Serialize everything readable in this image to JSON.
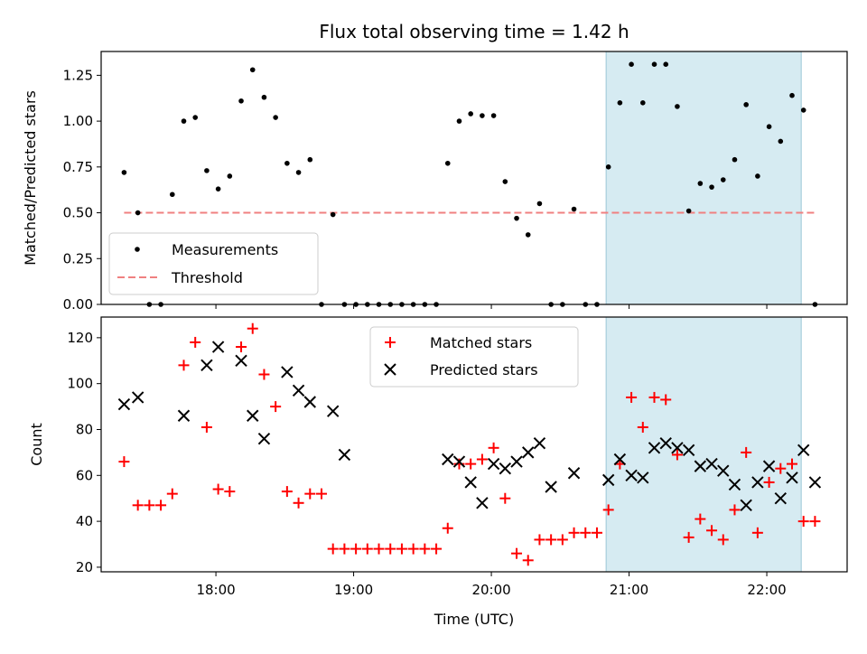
{
  "chart_data": [
    {
      "type": "scatter",
      "title": "Flux total observing time = 1.42 h",
      "xlabel": "",
      "ylabel": "Matched/Predicted stars",
      "xlim": [
        "17:10",
        "22:35"
      ],
      "ylim": [
        0,
        1.38
      ],
      "yticks": [
        0.0,
        0.25,
        0.5,
        0.75,
        1.0,
        1.25
      ],
      "ytick_labels": [
        "0.00",
        "0.25",
        "0.50",
        "0.75",
        "1.00",
        "1.25"
      ],
      "grid": false,
      "legend_position": "lower-left",
      "highlight_span": [
        "20:50",
        "22:15"
      ],
      "highlight_color": "#add8e6",
      "series": [
        {
          "name": "Measurements",
          "color": "#000000",
          "x": [
            "17:20",
            "17:26",
            "17:31",
            "17:36",
            "17:41",
            "17:46",
            "17:51",
            "17:56",
            "18:01",
            "18:06",
            "18:11",
            "18:16",
            "18:21",
            "18:26",
            "18:31",
            "18:36",
            "18:41",
            "18:46",
            "18:51",
            "18:56",
            "19:01",
            "19:06",
            "19:11",
            "19:16",
            "19:21",
            "19:26",
            "19:31",
            "19:36",
            "19:41",
            "19:46",
            "19:51",
            "19:56",
            "20:01",
            "20:06",
            "20:11",
            "20:16",
            "20:21",
            "20:26",
            "20:31",
            "20:36",
            "20:41",
            "20:46",
            "20:51",
            "20:56",
            "21:01",
            "21:06",
            "21:11",
            "21:16",
            "21:21",
            "21:26",
            "21:31",
            "21:36",
            "21:41",
            "21:46",
            "21:51",
            "21:56",
            "22:01",
            "22:06",
            "22:11",
            "22:16",
            "22:21"
          ],
          "y": [
            0.72,
            0.5,
            0.0,
            0.0,
            0.6,
            1.0,
            1.02,
            0.73,
            0.63,
            0.7,
            1.11,
            1.28,
            1.13,
            1.02,
            0.77,
            0.72,
            0.79,
            0.0,
            0.49,
            0.0,
            0.0,
            0.0,
            0.0,
            0.0,
            0.0,
            0.0,
            0.0,
            0.0,
            0.77,
            1.0,
            1.04,
            1.03,
            1.03,
            0.67,
            0.47,
            0.38,
            0.55,
            0.0,
            0.0,
            0.52,
            0.0,
            0.0,
            0.75,
            1.1,
            1.31,
            1.1,
            1.31,
            1.31,
            1.08,
            0.51,
            0.66,
            0.64,
            0.68,
            0.79,
            1.09,
            0.7,
            0.97,
            0.89,
            1.14,
            1.06,
            0.0
          ]
        },
        {
          "name": "Threshold",
          "color": "#f08080",
          "x": [
            "17:20",
            "22:21"
          ],
          "y": [
            0.5,
            0.5
          ]
        }
      ]
    },
    {
      "type": "scatter",
      "title": "",
      "xlabel": "Time (UTC)",
      "ylabel": "Count",
      "xlim": [
        "17:10",
        "22:35"
      ],
      "ylim": [
        18,
        129
      ],
      "xticks": [
        "18:00",
        "19:00",
        "20:00",
        "21:00",
        "22:00"
      ],
      "yticks": [
        20,
        40,
        60,
        80,
        100,
        120
      ],
      "ytick_labels": [
        "20",
        "40",
        "60",
        "80",
        "100",
        "120"
      ],
      "grid": false,
      "legend_position": "upper-center",
      "highlight_span": [
        "20:50",
        "22:15"
      ],
      "highlight_color": "#add8e6",
      "series": [
        {
          "name": "Matched stars",
          "color": "#ff0000",
          "marker": "plus",
          "x": [
            "17:20",
            "17:26",
            "17:31",
            "17:36",
            "17:41",
            "17:46",
            "17:51",
            "17:56",
            "18:01",
            "18:06",
            "18:11",
            "18:16",
            "18:21",
            "18:26",
            "18:31",
            "18:36",
            "18:41",
            "18:46",
            "18:51",
            "18:56",
            "19:01",
            "19:06",
            "19:11",
            "19:16",
            "19:21",
            "19:26",
            "19:31",
            "19:36",
            "19:41",
            "19:46",
            "19:51",
            "19:56",
            "20:01",
            "20:06",
            "20:11",
            "20:16",
            "20:21",
            "20:26",
            "20:31",
            "20:36",
            "20:41",
            "20:46",
            "20:51",
            "20:56",
            "21:01",
            "21:06",
            "21:11",
            "21:16",
            "21:21",
            "21:26",
            "21:31",
            "21:36",
            "21:41",
            "21:46",
            "21:51",
            "21:56",
            "22:01",
            "22:06",
            "22:11",
            "22:16",
            "22:21"
          ],
          "y": [
            66,
            47,
            47,
            47,
            52,
            108,
            118,
            81,
            54,
            53,
            116,
            124,
            104,
            90,
            53,
            48,
            52,
            52,
            28,
            28,
            28,
            28,
            28,
            28,
            28,
            28,
            28,
            28,
            37,
            65,
            65,
            67,
            72,
            50,
            26,
            23,
            32,
            32,
            32,
            35,
            35,
            35,
            45,
            65,
            94,
            81,
            94,
            93,
            69,
            33,
            41,
            36,
            32,
            45,
            70,
            35,
            57,
            63,
            65,
            40,
            40
          ]
        },
        {
          "name": "Predicted stars",
          "color": "#000000",
          "marker": "x",
          "x": [
            "17:20",
            "17:26",
            "17:46",
            "17:56",
            "18:01",
            "18:11",
            "18:16",
            "18:21",
            "18:31",
            "18:36",
            "18:41",
            "18:51",
            "18:56",
            "19:41",
            "19:46",
            "19:51",
            "19:56",
            "20:01",
            "20:06",
            "20:11",
            "20:16",
            "20:21",
            "20:26",
            "20:36",
            "20:51",
            "20:56",
            "21:01",
            "21:06",
            "21:11",
            "21:16",
            "21:21",
            "21:26",
            "21:31",
            "21:36",
            "21:41",
            "21:46",
            "21:51",
            "21:56",
            "22:01",
            "22:06",
            "22:11",
            "22:16",
            "22:21"
          ],
          "y": [
            91,
            94,
            86,
            108,
            116,
            110,
            86,
            76,
            105,
            97,
            92,
            88,
            69,
            67,
            66,
            57,
            48,
            65,
            63,
            66,
            70,
            74,
            55,
            61,
            58,
            67,
            60,
            59,
            72,
            74,
            72,
            71,
            64,
            65,
            62,
            56,
            47,
            57,
            64,
            50,
            59,
            71,
            57
          ]
        }
      ]
    }
  ]
}
